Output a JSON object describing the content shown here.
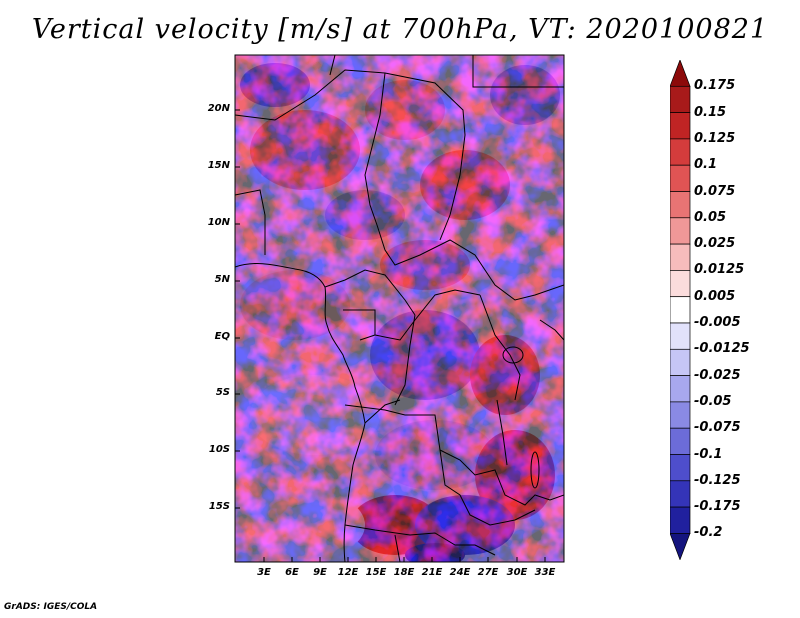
{
  "title": "Vertical velocity [m/s] at 700hPa, VT: 2020100821",
  "footer": "GrADS: IGES/COLA",
  "map": {
    "lat_labels": [
      "20N",
      "15N",
      "10N",
      "5N",
      "EQ",
      "5S",
      "10S",
      "15S"
    ],
    "lon_labels": [
      "3E",
      "6E",
      "9E",
      "12E",
      "15E",
      "18E",
      "21E",
      "24E",
      "27E",
      "30E",
      "33E"
    ]
  },
  "colorbar": {
    "labels": [
      "0.175",
      "0.15",
      "0.125",
      "0.1",
      "0.075",
      "0.05",
      "0.025",
      "0.0125",
      "0.005",
      "-0.005",
      "-0.0125",
      "-0.025",
      "-0.05",
      "-0.075",
      "-0.1",
      "-0.125",
      "-0.175",
      "-0.2"
    ],
    "colors": [
      "#8c0a0a",
      "#a81a1a",
      "#c02424",
      "#d43c3c",
      "#e05454",
      "#e87474",
      "#f09898",
      "#f7bcbc",
      "#fbdcdc",
      "#ffffff",
      "#e2e2fb",
      "#c6c6f5",
      "#a8a8ee",
      "#8a8ae4",
      "#6c6cd8",
      "#4e4ecc",
      "#3434b8",
      "#20209e",
      "#14147e"
    ]
  }
}
